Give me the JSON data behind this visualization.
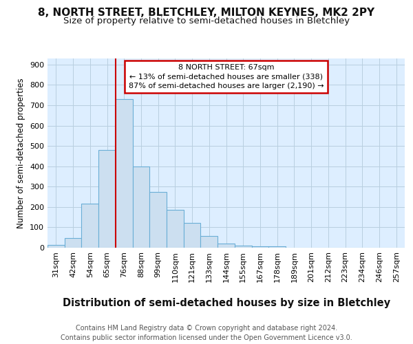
{
  "title": "8, NORTH STREET, BLETCHLEY, MILTON KEYNES, MK2 2PY",
  "subtitle": "Size of property relative to semi-detached houses in Bletchley",
  "xlabel": "Distribution of semi-detached houses by size in Bletchley",
  "ylabel": "Number of semi-detached properties",
  "bar_labels": [
    "31sqm",
    "42sqm",
    "54sqm",
    "65sqm",
    "76sqm",
    "88sqm",
    "99sqm",
    "110sqm",
    "121sqm",
    "133sqm",
    "144sqm",
    "155sqm",
    "167sqm",
    "178sqm",
    "189sqm",
    "201sqm",
    "212sqm",
    "223sqm",
    "234sqm",
    "246sqm",
    "257sqm"
  ],
  "bar_values": [
    12,
    48,
    215,
    480,
    730,
    400,
    275,
    185,
    122,
    57,
    19,
    9,
    7,
    8,
    0,
    0,
    0,
    0,
    0,
    0,
    0
  ],
  "bar_color": "#ccdff0",
  "bar_edge_color": "#6aaed6",
  "grid_color": "#b8cfe0",
  "plot_bg_color": "#ddeeff",
  "background_color": "#ffffff",
  "property_line_x": 3.5,
  "property_line_color": "#cc0000",
  "annotation_text": "8 NORTH STREET: 67sqm\n← 13% of semi-detached houses are smaller (338)\n87% of semi-detached houses are larger (2,190) →",
  "annotation_box_color": "#cc0000",
  "footer_text": "Contains HM Land Registry data © Crown copyright and database right 2024.\nContains public sector information licensed under the Open Government Licence v3.0.",
  "ylim": [
    0,
    930
  ],
  "yticks": [
    0,
    100,
    200,
    300,
    400,
    500,
    600,
    700,
    800,
    900
  ],
  "title_fontsize": 11,
  "subtitle_fontsize": 9.5,
  "xlabel_fontsize": 10.5,
  "ylabel_fontsize": 8.5,
  "tick_fontsize": 8,
  "footer_fontsize": 7,
  "annotation_fontsize": 8
}
